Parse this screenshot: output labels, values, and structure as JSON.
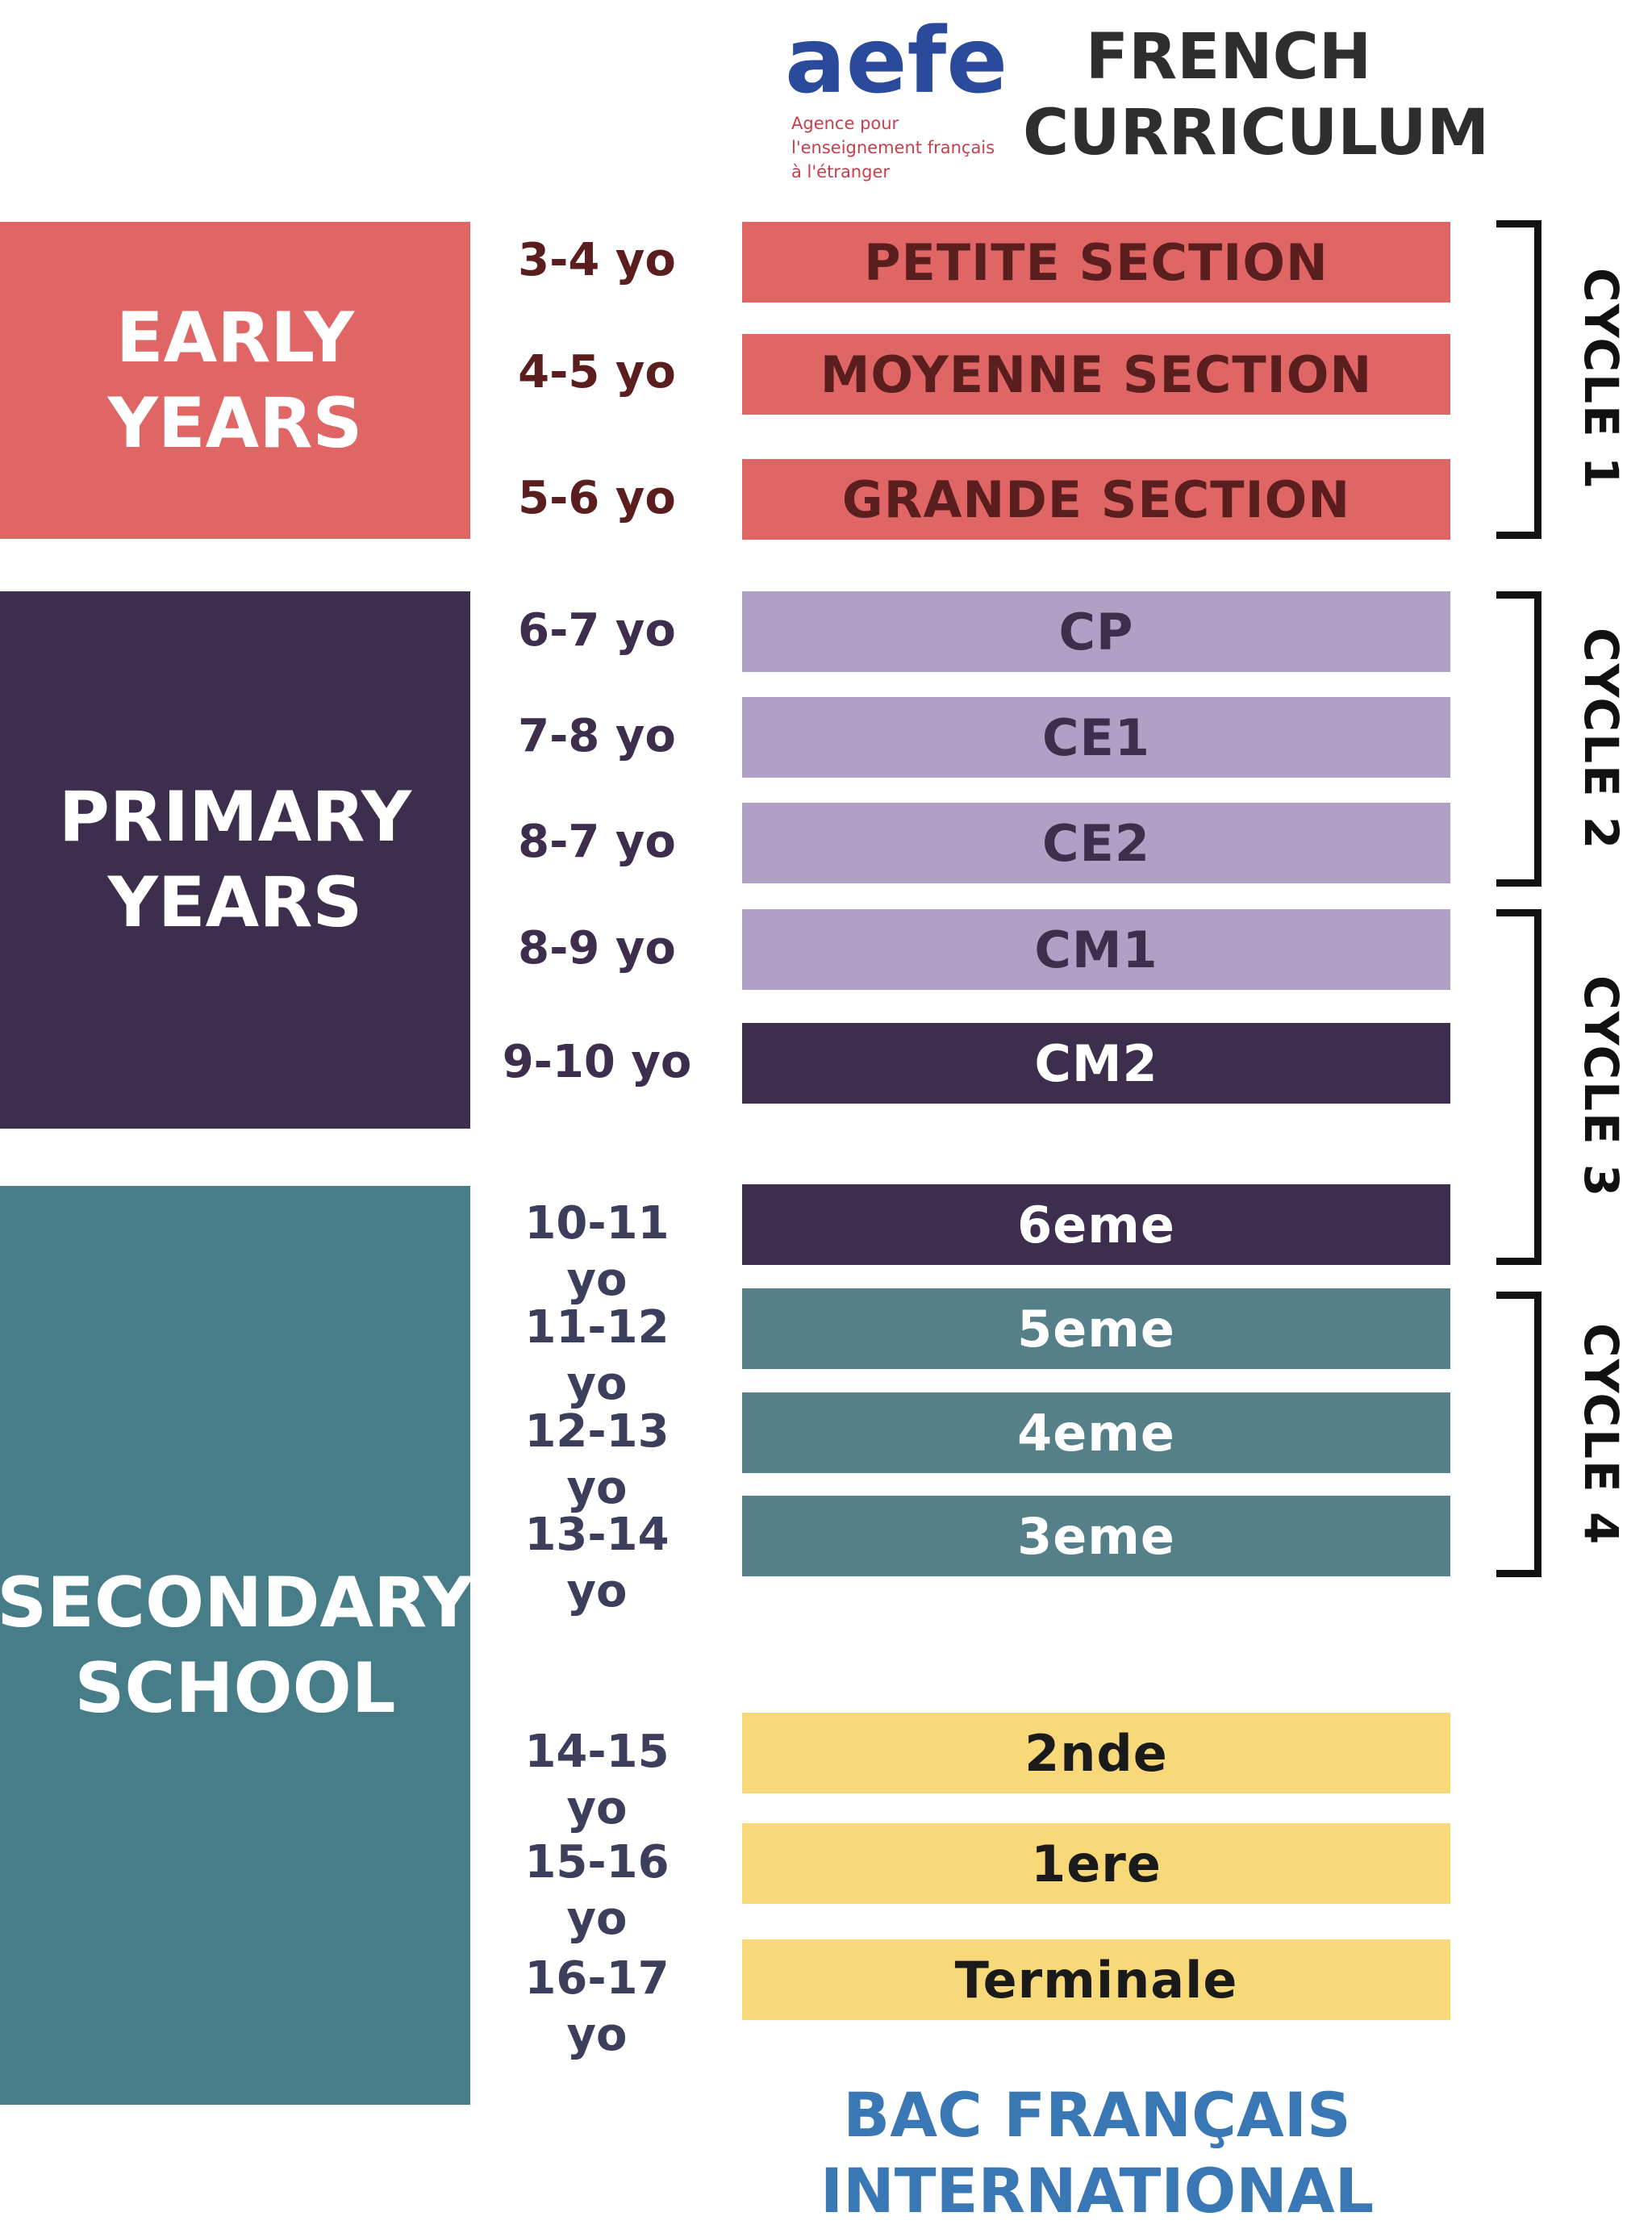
{
  "header": {
    "logo": {
      "word": "aefe",
      "tagline": [
        "Agence pour",
        "l'enseignement français",
        "à l'étranger"
      ]
    },
    "title_lines": [
      "FRENCH",
      "CURRICULUM"
    ]
  },
  "colors": {
    "early": "#e06666",
    "primary": "#3d2e4e",
    "secondary": "#467d88",
    "lavender": "#b0a0c6",
    "teal_bar": "#558089",
    "yellow": "#f7d97a",
    "early_text": "#5a1e1e",
    "primary_text": "#3d2e4e",
    "secondary_text": "#3d3d5c",
    "bac": "#3a78b5"
  },
  "stages": [
    {
      "id": "early",
      "lines": [
        "EARLY",
        "YEARS"
      ]
    },
    {
      "id": "primary",
      "lines": [
        "PRIMARY",
        "YEARS"
      ]
    },
    {
      "id": "secondary",
      "lines": [
        "SECONDARY",
        "SCHOOL"
      ]
    }
  ],
  "rows": [
    {
      "age": "3-4 yo",
      "label": "PETITE SECTION"
    },
    {
      "age": "4-5 yo",
      "label": "MOYENNE SECTION"
    },
    {
      "age": "5-6 yo",
      "label": "GRANDE SECTION"
    },
    {
      "age": "6-7 yo",
      "label": "CP"
    },
    {
      "age": "7-8 yo",
      "label": "CE1"
    },
    {
      "age": "8-7 yo",
      "label": "CE2"
    },
    {
      "age": "8-9 yo",
      "label": "CM1"
    },
    {
      "age": "9-10 yo",
      "label": "CM2"
    },
    {
      "age": "10-11 yo",
      "label": "6eme"
    },
    {
      "age": "11-12 yo",
      "label": "5eme"
    },
    {
      "age": "12-13 yo",
      "label": "4eme"
    },
    {
      "age": "13-14 yo",
      "label": "3eme"
    },
    {
      "age": "14-15 yo",
      "label": "2nde"
    },
    {
      "age": "15-16 yo",
      "label": "1ere"
    },
    {
      "age": "16-17 yo",
      "label": "Terminale"
    }
  ],
  "cycles": [
    "CYCLE 1",
    "CYCLE 2",
    "CYCLE 3",
    "CYCLE 4"
  ],
  "footer": {
    "lines": [
      "BAC FRANÇAIS",
      "INTERNATIONAL"
    ]
  }
}
